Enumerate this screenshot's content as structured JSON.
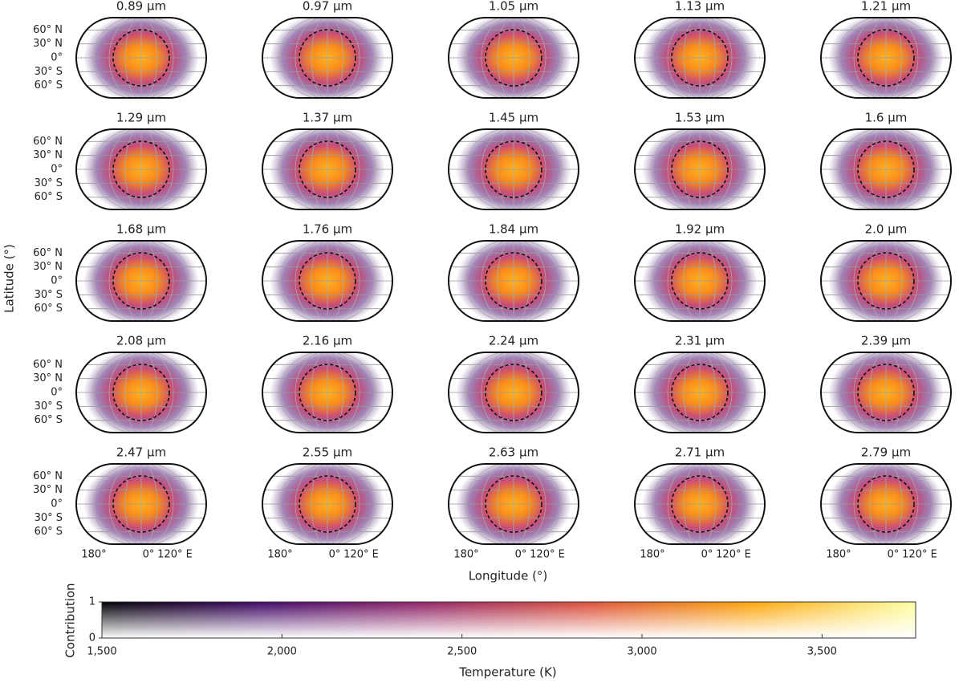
{
  "chart_data": {
    "type": "map-grid",
    "panels": [
      "0.89 µm",
      "0.97 µm",
      "1.05 µm",
      "1.13 µm",
      "1.21 µm",
      "1.29 µm",
      "1.37 µm",
      "1.45 µm",
      "1.53 µm",
      "1.6 µm",
      "1.68 µm",
      "1.76 µm",
      "1.84 µm",
      "1.92 µm",
      "2.0 µm",
      "2.08 µm",
      "2.16 µm",
      "2.24 µm",
      "2.31 µm",
      "2.39 µm",
      "2.47 µm",
      "2.55 µm",
      "2.63 µm",
      "2.71 µm",
      "2.79 µm"
    ],
    "ylabel": "Latitude (°)",
    "xlabel": "Longitude (°)",
    "ylim": [
      -90,
      90
    ],
    "yticks": [
      {
        "value": 60,
        "label": "60° N"
      },
      {
        "value": 30,
        "label": "30° N"
      },
      {
        "value": 0,
        "label": "0°"
      },
      {
        "value": -30,
        "label": "30° S"
      },
      {
        "value": -60,
        "label": "60° S"
      }
    ],
    "xtick_labels": [
      "180°",
      "0°",
      "120° E"
    ],
    "colorbar": {
      "xlabel": "Temperature (K)",
      "ylabel": "Contribution",
      "xlim": [
        1500,
        3760
      ],
      "xticks": [
        {
          "value": 1500,
          "label": "1,500"
        },
        {
          "value": 2000,
          "label": "2,000"
        },
        {
          "value": 2500,
          "label": "2,500"
        },
        {
          "value": 3000,
          "label": "3,000"
        },
        {
          "value": 3500,
          "label": "3,500"
        }
      ],
      "ylim": [
        0,
        1
      ],
      "yticks": [
        0,
        1
      ]
    }
  }
}
